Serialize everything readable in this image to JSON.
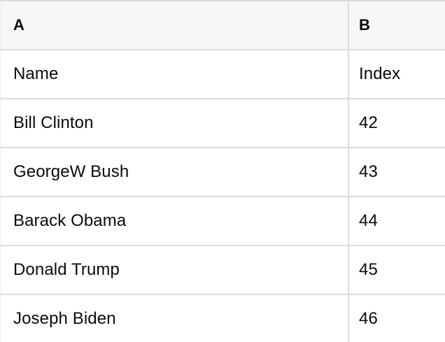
{
  "table": {
    "column_headers": {
      "a": "A",
      "b": "B"
    },
    "rows": [
      {
        "a": "Name",
        "b": "Index"
      },
      {
        "a": "Bill Clinton",
        "b": "42"
      },
      {
        "a": "GeorgeW Bush",
        "b": "43"
      },
      {
        "a": "Barack Obama",
        "b": "44"
      },
      {
        "a": "Donald Trump",
        "b": "45"
      },
      {
        "a": "Joseph Biden",
        "b": "46"
      }
    ],
    "colors": {
      "header_background": "#f7f7f7",
      "cell_background": "#ffffff",
      "border": "#dcdcdc",
      "text": "#0b0b0b"
    }
  }
}
